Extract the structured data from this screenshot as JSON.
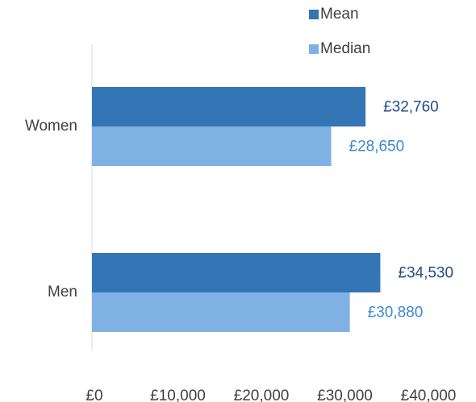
{
  "chart_data": {
    "type": "hbar",
    "categories": [
      "Women",
      "Men"
    ],
    "series": [
      {
        "name": "Mean",
        "color": "#3375b5",
        "label_color": "#1f4e85",
        "values": [
          32760,
          34530
        ],
        "value_labels": [
          "£32,760",
          "£34,530"
        ]
      },
      {
        "name": "Median",
        "color": "#7fb1e5",
        "label_color": "#3b88d0",
        "values": [
          28650,
          30880
        ],
        "value_labels": [
          "£28,650",
          "£30,880"
        ]
      }
    ],
    "xlim": [
      0,
      40000
    ],
    "xticks": [
      {
        "value": 0,
        "label": "£0"
      },
      {
        "value": 10000,
        "label": "£10,000"
      },
      {
        "value": 20000,
        "label": "£20,000"
      },
      {
        "value": 30000,
        "label": "£30,000"
      },
      {
        "value": 40000,
        "label": "£40,000"
      }
    ],
    "legend": "top-right"
  }
}
